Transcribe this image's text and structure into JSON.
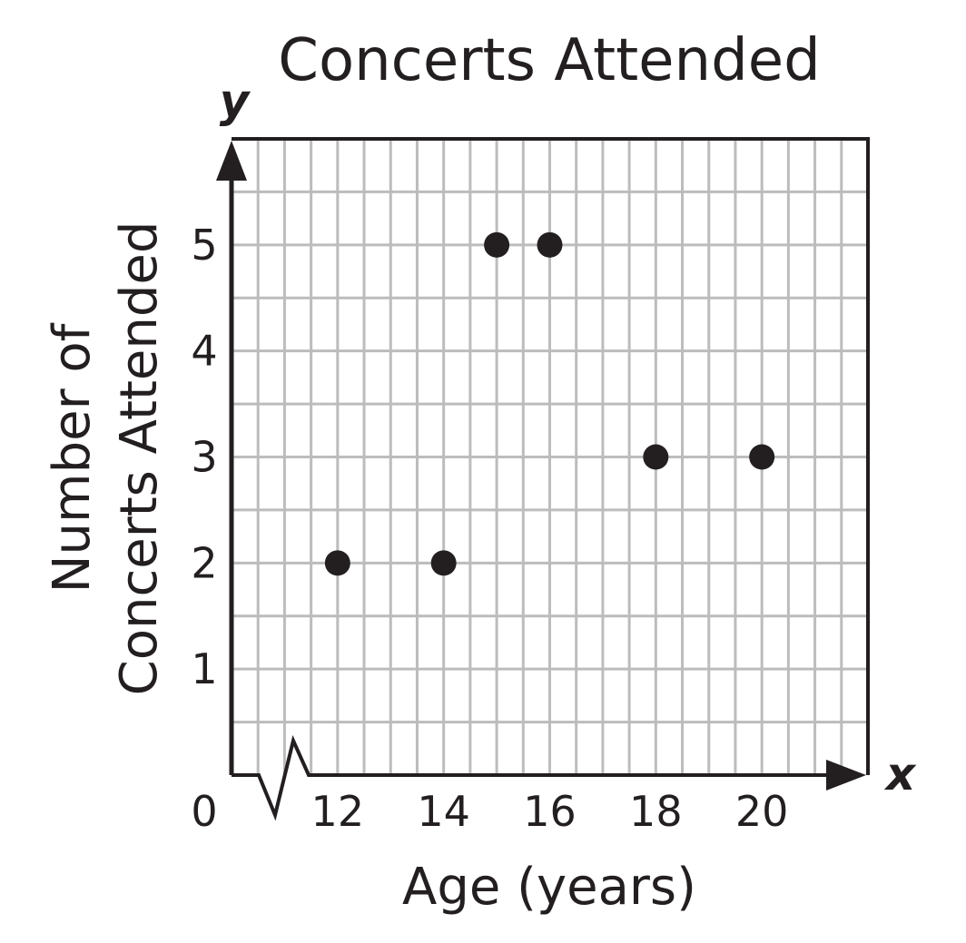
{
  "colors": {
    "ink": "#231f20",
    "grid": "#bcbcbc",
    "background": "#ffffff"
  },
  "chart_data": {
    "type": "scatter",
    "title": "Concerts Attended",
    "xlabel": "Age (years)",
    "ylabel_lines": [
      "Number of",
      "Concerts Attended"
    ],
    "x_axis_letter": "x",
    "y_axis_letter": "y",
    "origin_label": "0",
    "x_ticks": [
      "12",
      "14",
      "16",
      "18",
      "20"
    ],
    "y_ticks": [
      "1",
      "2",
      "3",
      "4",
      "5"
    ],
    "xlim": [
      10,
      22
    ],
    "ylim": [
      0,
      6
    ],
    "x_axis_break": true,
    "grid": true,
    "grid_step": 0.5,
    "points": [
      {
        "x": 12,
        "y": 2
      },
      {
        "x": 14,
        "y": 2
      },
      {
        "x": 15,
        "y": 5
      },
      {
        "x": 16,
        "y": 5
      },
      {
        "x": 18,
        "y": 3
      },
      {
        "x": 20,
        "y": 3
      }
    ]
  }
}
